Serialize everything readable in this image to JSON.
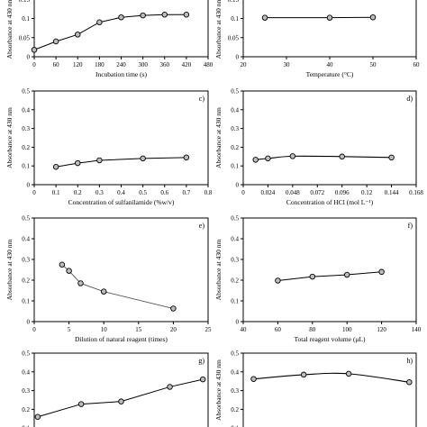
{
  "figure": {
    "ylabel_common": "Absorbance at 430 nm"
  },
  "chart_data": [
    {
      "id": "a",
      "letter": "",
      "type": "line",
      "xlabel": "Incubation time (s)",
      "ylabel": "Absorbance at 430 nm",
      "xlim": [
        0,
        480
      ],
      "ylim": [
        0,
        0.2
      ],
      "x_ticks": [
        0,
        60,
        120,
        180,
        240,
        300,
        360,
        420,
        480
      ],
      "x_tick_labels": [
        "0",
        "60",
        "120",
        "180",
        "240",
        "300",
        "360",
        "420",
        "480"
      ],
      "y_ticks": [
        0,
        0.05,
        0.1,
        0.15,
        0.2
      ],
      "y_tick_labels": [
        "0",
        "0.05",
        "0.1",
        "0.15",
        "0.2"
      ],
      "x": [
        0,
        60,
        120,
        180,
        240,
        300,
        360,
        420
      ],
      "y": [
        0.018,
        0.04,
        0.058,
        0.09,
        0.103,
        0.108,
        0.11,
        0.11
      ],
      "curve": false
    },
    {
      "id": "b",
      "letter": "",
      "type": "line",
      "xlabel": "Temperature (°C)",
      "ylabel": "Absorbance at 430 nm",
      "xlim": [
        20,
        60
      ],
      "ylim": [
        0,
        0.2
      ],
      "x_ticks": [
        20,
        30,
        40,
        50,
        60
      ],
      "x_tick_labels": [
        "20",
        "30",
        "40",
        "50",
        "60"
      ],
      "y_ticks": [
        0,
        0.05,
        0.1,
        0.15,
        0.2
      ],
      "y_tick_labels": [
        "0",
        "0.05",
        "0.1",
        "0.15",
        "0.2"
      ],
      "x": [
        25,
        40,
        50
      ],
      "y": [
        0.102,
        0.102,
        0.103
      ],
      "curve": false
    },
    {
      "id": "c",
      "letter": "c)",
      "type": "line",
      "xlabel": "Concentration of sulfanilamide (%w/v)",
      "ylabel": "Absorbance at 430 nm",
      "xlim": [
        0,
        0.8
      ],
      "ylim": [
        0,
        0.5
      ],
      "x_ticks": [
        0,
        0.1,
        0.2,
        0.3,
        0.4,
        0.5,
        0.6,
        0.7,
        0.8
      ],
      "x_tick_labels": [
        "0",
        "0.1",
        "0.2",
        "0.3",
        "0.4",
        "0.5",
        "0.6",
        "0.7",
        "0.8"
      ],
      "y_ticks": [
        0,
        0.1,
        0.2,
        0.3,
        0.4,
        0.5
      ],
      "y_tick_labels": [
        "0",
        "0.1",
        "0.2",
        "0.3",
        "0.4",
        "0.5"
      ],
      "x": [
        0.1,
        0.2,
        0.3,
        0.5,
        0.7
      ],
      "y": [
        0.095,
        0.115,
        0.13,
        0.14,
        0.145
      ],
      "curve": false
    },
    {
      "id": "d",
      "letter": "d)",
      "type": "line",
      "xlabel": "Concentration of HCl (mol L⁻¹)",
      "ylabel": "Absorbance at 430 nm",
      "xlim": [
        0,
        0.168
      ],
      "ylim": [
        0,
        0.5
      ],
      "x_ticks": [
        0,
        0.024,
        0.048,
        0.072,
        0.096,
        0.12,
        0.144,
        0.168
      ],
      "x_tick_labels": [
        "0",
        "0.024",
        "0.048",
        "0.072",
        "0.096",
        "0.12",
        "0.144",
        "0.168"
      ],
      "y_ticks": [
        0,
        0.1,
        0.2,
        0.3,
        0.4,
        0.5
      ],
      "y_tick_labels": [
        "0",
        "0.1",
        "0.2",
        "0.3",
        "0.4",
        "0.5"
      ],
      "x": [
        0.012,
        0.024,
        0.048,
        0.096,
        0.144
      ],
      "y": [
        0.133,
        0.14,
        0.152,
        0.15,
        0.145
      ],
      "curve": true
    },
    {
      "id": "e",
      "letter": "e)",
      "type": "line",
      "xlabel": "Dilution of natural reagent (times)",
      "ylabel": "Absorbance at 430 nm",
      "xlim": [
        0,
        25
      ],
      "ylim": [
        0,
        0.5
      ],
      "x_ticks": [
        0,
        5,
        10,
        15,
        20,
        25
      ],
      "x_tick_labels": [
        "0",
        "5",
        "10",
        "15",
        "20",
        "25"
      ],
      "y_ticks": [
        0,
        0.1,
        0.2,
        0.3,
        0.4,
        0.5
      ],
      "y_tick_labels": [
        "0",
        "0.1",
        "0.2",
        "0.3",
        "0.4",
        "0.5"
      ],
      "x": [
        4,
        5,
        6.67,
        10,
        20
      ],
      "y": [
        0.275,
        0.245,
        0.185,
        0.145,
        0.063
      ],
      "curve": false,
      "grey": true
    },
    {
      "id": "f",
      "letter": "f)",
      "type": "line",
      "xlabel": "Total reagent volume (μL)",
      "ylabel": "Absorbance at 430 nm",
      "xlim": [
        40,
        140
      ],
      "ylim": [
        0,
        0.5
      ],
      "x_ticks": [
        40,
        60,
        80,
        100,
        120,
        140
      ],
      "x_tick_labels": [
        "40",
        "60",
        "80",
        "100",
        "120",
        "140"
      ],
      "y_ticks": [
        0,
        0.1,
        0.2,
        0.3,
        0.4,
        0.5
      ],
      "y_tick_labels": [
        "0",
        "0.1",
        "0.2",
        "0.3",
        "0.4",
        "0.5"
      ],
      "x": [
        60,
        80,
        100,
        120
      ],
      "y": [
        0.198,
        0.217,
        0.226,
        0.24
      ],
      "curve": false
    },
    {
      "id": "g",
      "letter": "g)",
      "type": "line",
      "xlabel": "",
      "ylabel": "",
      "xlim": [
        0,
        1
      ],
      "ylim": [
        0,
        0.5
      ],
      "x_ticks": [],
      "x_tick_labels": [],
      "y_ticks": [
        0,
        0.1,
        0.2,
        0.3,
        0.4,
        0.5
      ],
      "y_tick_labels": [
        "0",
        "0.1",
        "0.2",
        "0.3",
        "0.4",
        "0.5"
      ],
      "x": [
        0.02,
        0.27,
        0.5,
        0.78,
        0.97
      ],
      "y": [
        0.16,
        0.228,
        0.242,
        0.32,
        0.36
      ],
      "curve": false
    },
    {
      "id": "h",
      "letter": "h)",
      "type": "line",
      "xlabel": "",
      "ylabel": "Absorbance at 430 nm",
      "xlim": [
        0,
        1
      ],
      "ylim": [
        0,
        0.5
      ],
      "x_ticks": [],
      "x_tick_labels": [],
      "y_ticks": [
        0,
        0.1,
        0.2,
        0.3,
        0.4,
        0.5
      ],
      "y_tick_labels": [
        "0",
        "0.1",
        "0.2",
        "0.3",
        "0.4",
        "0.5"
      ],
      "x": [
        0.06,
        0.35,
        0.61,
        0.96
      ],
      "y": [
        0.362,
        0.385,
        0.39,
        0.345
      ],
      "curve": true
    }
  ]
}
